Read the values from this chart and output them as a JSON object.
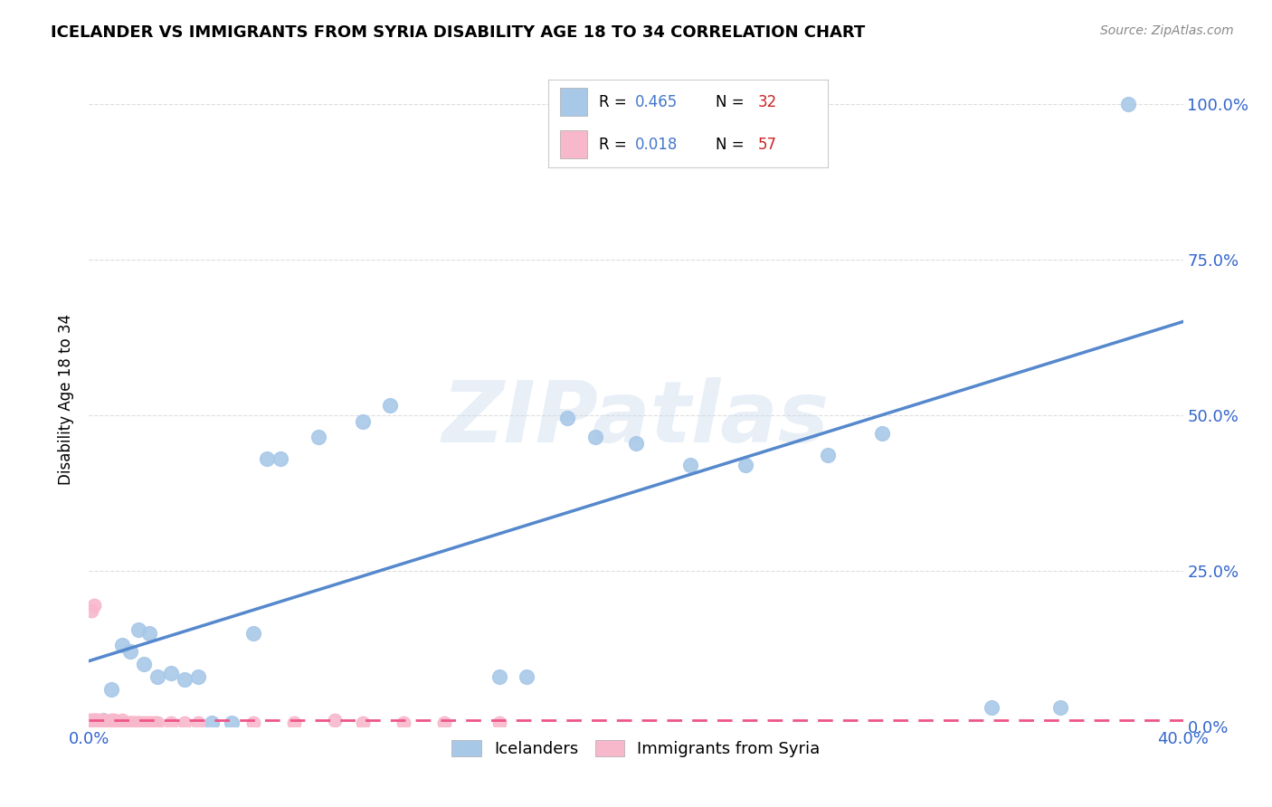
{
  "title": "ICELANDER VS IMMIGRANTS FROM SYRIA DISABILITY AGE 18 TO 34 CORRELATION CHART",
  "source": "Source: ZipAtlas.com",
  "ylabel": "Disability Age 18 to 34",
  "xlim": [
    0.0,
    0.4
  ],
  "ylim": [
    0.0,
    1.05
  ],
  "xticks": [
    0.0,
    0.08,
    0.16,
    0.24,
    0.32,
    0.4
  ],
  "yticks": [
    0.0,
    0.25,
    0.5,
    0.75,
    1.0
  ],
  "ytick_labels_right": [
    "0.0%",
    "25.0%",
    "50.0%",
    "75.0%",
    "100.0%"
  ],
  "xtick_labels": [
    "0.0%",
    "",
    "",
    "",
    "",
    "40.0%"
  ],
  "icelanders_R": 0.465,
  "icelanders_N": 32,
  "syria_R": 0.018,
  "syria_N": 57,
  "icelanders_color": "#a8c8e8",
  "icelanders_line_color": "#5588cc",
  "syria_color": "#f8b8cc",
  "syria_line_color": "#ee5588",
  "watermark": "ZIPatlas",
  "icelanders_x": [
    0.005,
    0.008,
    0.01,
    0.012,
    0.015,
    0.018,
    0.02,
    0.022,
    0.025,
    0.03,
    0.035,
    0.04,
    0.045,
    0.052,
    0.06,
    0.065,
    0.07,
    0.084,
    0.1,
    0.11,
    0.15,
    0.16,
    0.175,
    0.185,
    0.2,
    0.22,
    0.24,
    0.27,
    0.29,
    0.33,
    0.355,
    0.38
  ],
  "icelanders_y": [
    0.01,
    0.06,
    0.005,
    0.13,
    0.12,
    0.155,
    0.1,
    0.15,
    0.08,
    0.085,
    0.075,
    0.08,
    0.005,
    0.005,
    0.15,
    0.43,
    0.43,
    0.465,
    0.49,
    0.515,
    0.08,
    0.08,
    0.495,
    0.465,
    0.455,
    0.42,
    0.42,
    0.435,
    0.47,
    0.03,
    0.03,
    1.0
  ],
  "syria_x": [
    0.0,
    0.001,
    0.001,
    0.001,
    0.001,
    0.002,
    0.002,
    0.002,
    0.003,
    0.003,
    0.003,
    0.004,
    0.004,
    0.005,
    0.005,
    0.005,
    0.006,
    0.006,
    0.007,
    0.007,
    0.008,
    0.008,
    0.009,
    0.009,
    0.01,
    0.01,
    0.011,
    0.011,
    0.012,
    0.013,
    0.013,
    0.014,
    0.014,
    0.015,
    0.015,
    0.016,
    0.016,
    0.017,
    0.018,
    0.018,
    0.019,
    0.02,
    0.021,
    0.022,
    0.023,
    0.024,
    0.025,
    0.03,
    0.035,
    0.04,
    0.06,
    0.075,
    0.09,
    0.1,
    0.115,
    0.13,
    0.15
  ],
  "syria_y": [
    0.01,
    0.005,
    0.01,
    0.185,
    0.005,
    0.01,
    0.01,
    0.195,
    0.01,
    0.01,
    0.005,
    0.005,
    0.005,
    0.01,
    0.01,
    0.005,
    0.005,
    0.005,
    0.005,
    0.005,
    0.005,
    0.01,
    0.005,
    0.01,
    0.005,
    0.005,
    0.005,
    0.005,
    0.01,
    0.005,
    0.005,
    0.005,
    0.005,
    0.005,
    0.005,
    0.005,
    0.005,
    0.005,
    0.005,
    0.005,
    0.005,
    0.005,
    0.005,
    0.005,
    0.005,
    0.005,
    0.005,
    0.005,
    0.005,
    0.005,
    0.005,
    0.005,
    0.01,
    0.005,
    0.005,
    0.005,
    0.005
  ],
  "ice_line_x0": 0.0,
  "ice_line_y0": 0.105,
  "ice_line_x1": 0.4,
  "ice_line_y1": 0.65,
  "syr_line_x0": 0.0,
  "syr_line_y0": 0.01,
  "syr_line_x1": 0.4,
  "syr_line_y1": 0.01
}
